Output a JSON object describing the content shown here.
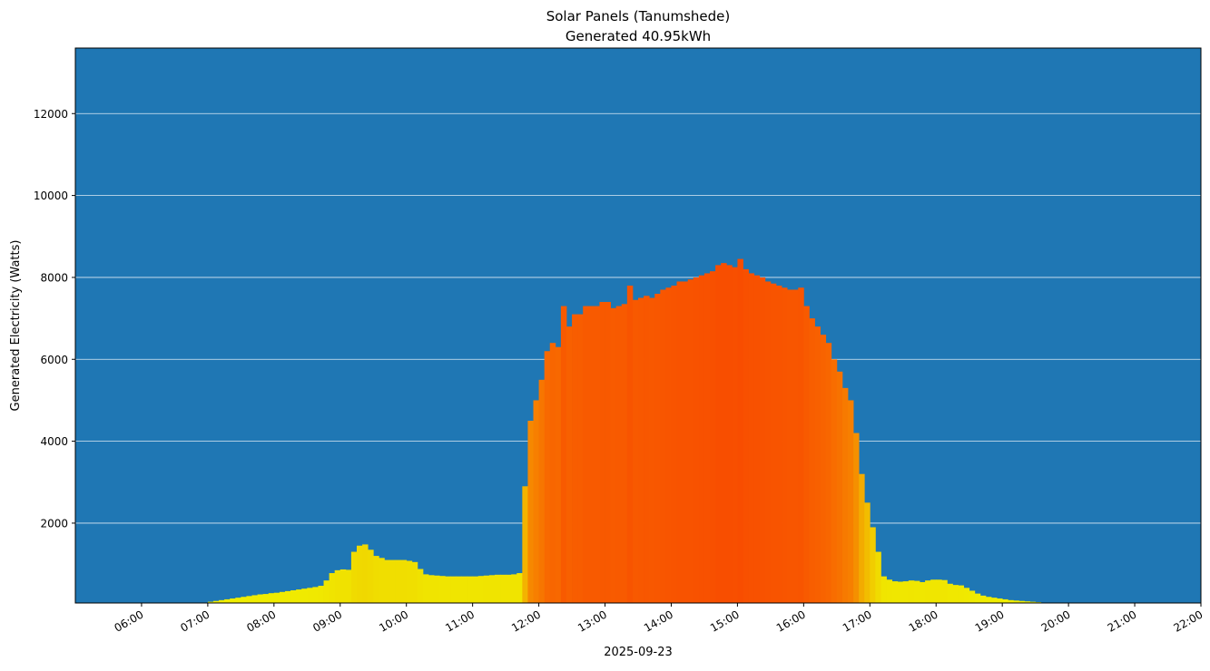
{
  "chart_data": {
    "type": "bar",
    "title": "Solar Panels (Tanumshede)",
    "subtitle": "Generated 40.95kWh",
    "xlabel": "2025-09-23",
    "ylabel": "Generated Electricity (Watts)",
    "xlim": [
      "05:00",
      "22:00"
    ],
    "ylim": [
      50,
      13600
    ],
    "x_ticks": [
      "06:00",
      "07:00",
      "08:00",
      "09:00",
      "10:00",
      "11:00",
      "12:00",
      "13:00",
      "14:00",
      "15:00",
      "16:00",
      "17:00",
      "18:00",
      "19:00",
      "20:00",
      "21:00",
      "22:00"
    ],
    "y_ticks": [
      2000,
      4000,
      6000,
      8000,
      10000,
      12000
    ],
    "grid": "horizontal",
    "colors": {
      "background": "#1f77b4",
      "low": "#f0f000",
      "high": "#f84c00",
      "grid": "#ffffff"
    },
    "start_time": "07:00",
    "interval_minutes": 5,
    "values": [
      80,
      100,
      120,
      140,
      160,
      180,
      200,
      220,
      240,
      260,
      270,
      290,
      300,
      320,
      340,
      360,
      380,
      400,
      420,
      440,
      470,
      600,
      780,
      850,
      870,
      860,
      1300,
      1450,
      1480,
      1350,
      1200,
      1150,
      1100,
      1100,
      1100,
      1100,
      1080,
      1050,
      880,
      750,
      730,
      720,
      710,
      700,
      700,
      700,
      700,
      700,
      700,
      710,
      720,
      730,
      740,
      740,
      740,
      750,
      780,
      2900,
      4500,
      5000,
      5500,
      6200,
      6400,
      6300,
      7300,
      6800,
      7100,
      7100,
      7300,
      7300,
      7300,
      7400,
      7400,
      7250,
      7300,
      7350,
      7800,
      7450,
      7500,
      7550,
      7500,
      7600,
      7700,
      7750,
      7800,
      7900,
      7900,
      7950,
      8000,
      8050,
      8100,
      8150,
      8300,
      8350,
      8300,
      8250,
      8450,
      8200,
      8100,
      8050,
      8000,
      7900,
      7850,
      7800,
      7750,
      7700,
      7700,
      7750,
      7300,
      7000,
      6800,
      6600,
      6400,
      6000,
      5700,
      5300,
      5000,
      4200,
      3200,
      2500,
      1900,
      1300,
      700,
      620,
      580,
      570,
      580,
      600,
      590,
      560,
      600,
      620,
      620,
      610,
      520,
      490,
      480,
      420,
      350,
      280,
      230,
      200,
      180,
      160,
      140,
      120,
      110,
      100,
      90,
      80,
      70,
      60,
      60,
      60,
      60,
      60
    ]
  }
}
